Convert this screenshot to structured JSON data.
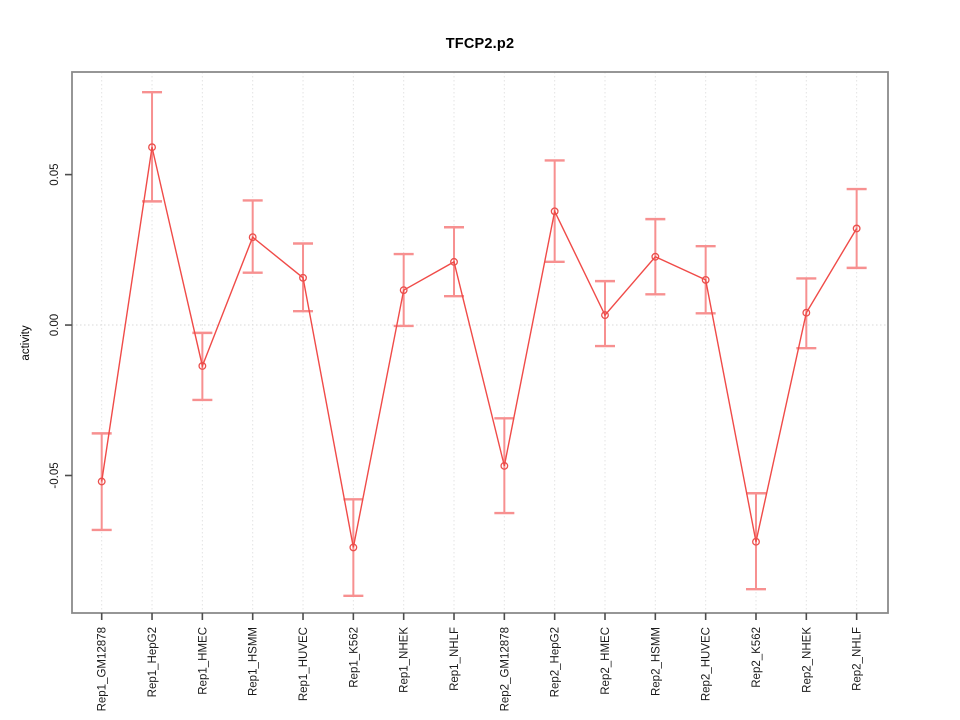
{
  "title": "TFCP2.p2",
  "ylabel": "activity",
  "colors": {
    "series_line": "#f04b48",
    "point_stroke": "#ea4f4c",
    "error_bar": "#f79090",
    "gridline": "#e3e3e3",
    "zero_line": "#d8d8d8",
    "axis_box": "#8a8a8a",
    "tick_mark": "#4d4d4d",
    "tick_text": "#1a1a1a",
    "background": "#ffffff"
  },
  "chart_data": {
    "type": "line",
    "title": "TFCP2.p2",
    "xlabel": "",
    "ylabel": "activity",
    "legend_position": "none",
    "grid": "dotted vertical gridline at every category; dotted horizontal line at y=0",
    "marker": "open-circle",
    "error_bars": true,
    "ylim": [
      -0.0957,
      0.0841
    ],
    "yticks": [
      -0.05,
      0.0,
      0.05
    ],
    "ytick_labels": [
      "-0.05",
      "0.00",
      "0.05"
    ],
    "categories": [
      "Rep1_GM12878",
      "Rep1_HepG2",
      "Rep1_HMEC",
      "Rep1_HSMM",
      "Rep1_HUVEC",
      "Rep1_K562",
      "Rep1_NHEK",
      "Rep1_NHLF",
      "Rep2_GM12878",
      "Rep2_HepG2",
      "Rep2_HMEC",
      "Rep2_HSMM",
      "Rep2_HUVEC",
      "Rep2_K562",
      "Rep2_NHEK",
      "Rep2_NHLF"
    ],
    "series": [
      {
        "name": "activity",
        "values": [
          -0.052,
          0.0591,
          -0.0136,
          0.0292,
          0.0157,
          -0.0739,
          0.0116,
          0.021,
          -0.0468,
          0.0378,
          0.0033,
          0.0227,
          0.015,
          -0.072,
          0.0041,
          0.0321
        ],
        "lower": [
          -0.0681,
          0.0411,
          -0.0249,
          0.0174,
          0.0046,
          -0.09,
          -0.0003,
          0.0096,
          -0.0625,
          0.021,
          -0.007,
          0.0102,
          0.0039,
          -0.0878,
          -0.0077,
          0.019
        ],
        "upper": [
          -0.036,
          0.0774,
          -0.0026,
          0.0414,
          0.0271,
          -0.0579,
          0.0236,
          0.0325,
          -0.031,
          0.0547,
          0.0146,
          0.0352,
          0.0262,
          -0.0559,
          0.0155,
          0.0452
        ]
      }
    ]
  }
}
